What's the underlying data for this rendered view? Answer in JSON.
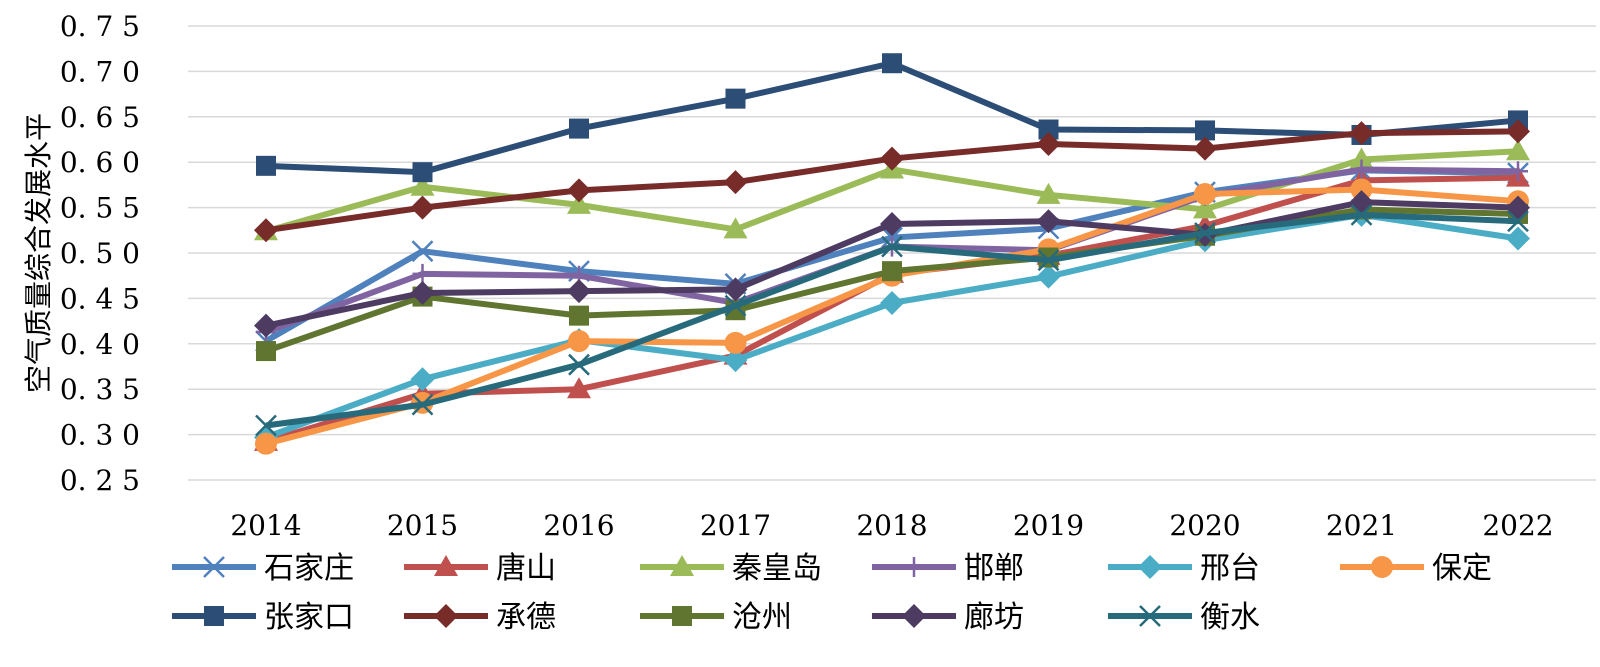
{
  "chart_data": {
    "type": "line",
    "title": "",
    "xlabel": "",
    "ylabel": "空气质量综合发展水平",
    "categories": [
      "2014",
      "2015",
      "2016",
      "2017",
      "2018",
      "2019",
      "2020",
      "2021",
      "2022"
    ],
    "ylim": [
      0.25,
      0.75
    ],
    "yticks": [
      "0.25",
      "0.30",
      "0.35",
      "0.40",
      "0.45",
      "0.50",
      "0.55",
      "0.60",
      "0.65",
      "0.70",
      "0.75"
    ],
    "grid": true,
    "legend_position": "bottom",
    "series": [
      {
        "name": "石家庄",
        "color": "#4F81BD",
        "marker": "x",
        "values": [
          0.403,
          0.502,
          0.48,
          0.466,
          0.517,
          0.527,
          0.567,
          0.591,
          0.588
        ]
      },
      {
        "name": "唐山",
        "color": "#C0504D",
        "marker": "triangle",
        "values": [
          0.292,
          0.345,
          0.35,
          0.387,
          0.477,
          0.497,
          0.53,
          0.58,
          0.583
        ]
      },
      {
        "name": "秦皇岛",
        "color": "#9BBB59",
        "marker": "triangle",
        "values": [
          0.524,
          0.573,
          0.553,
          0.526,
          0.592,
          0.564,
          0.548,
          0.603,
          0.612
        ]
      },
      {
        "name": "邯郸",
        "color": "#8064A2",
        "marker": "plus",
        "values": [
          0.413,
          0.477,
          0.475,
          0.445,
          0.507,
          0.503,
          0.563,
          0.592,
          0.59
        ]
      },
      {
        "name": "邢台",
        "color": "#4BACC6",
        "marker": "diamond",
        "values": [
          0.297,
          0.361,
          0.404,
          0.382,
          0.445,
          0.474,
          0.514,
          0.542,
          0.516
        ]
      },
      {
        "name": "保定",
        "color": "#F79646",
        "marker": "circle",
        "values": [
          0.29,
          0.335,
          0.403,
          0.401,
          0.475,
          0.504,
          0.565,
          0.57,
          0.557
        ]
      },
      {
        "name": "张家口",
        "color": "#2C4D75",
        "marker": "square",
        "values": [
          0.596,
          0.589,
          0.637,
          0.67,
          0.709,
          0.636,
          0.635,
          0.63,
          0.646
        ]
      },
      {
        "name": "承德",
        "color": "#772C2A",
        "marker": "diamond",
        "values": [
          0.525,
          0.55,
          0.569,
          0.578,
          0.604,
          0.62,
          0.615,
          0.632,
          0.634
        ]
      },
      {
        "name": "沧州",
        "color": "#5F7530",
        "marker": "square",
        "values": [
          0.392,
          0.452,
          0.431,
          0.437,
          0.48,
          0.495,
          0.519,
          0.548,
          0.543
        ]
      },
      {
        "name": "廊坊",
        "color": "#4D3B62",
        "marker": "diamond",
        "values": [
          0.42,
          0.456,
          0.458,
          0.46,
          0.532,
          0.535,
          0.52,
          0.556,
          0.55
        ]
      },
      {
        "name": "衡水",
        "color": "#276A7C",
        "marker": "x",
        "values": [
          0.31,
          0.333,
          0.377,
          0.442,
          0.507,
          0.492,
          0.522,
          0.542,
          0.535
        ]
      }
    ]
  }
}
